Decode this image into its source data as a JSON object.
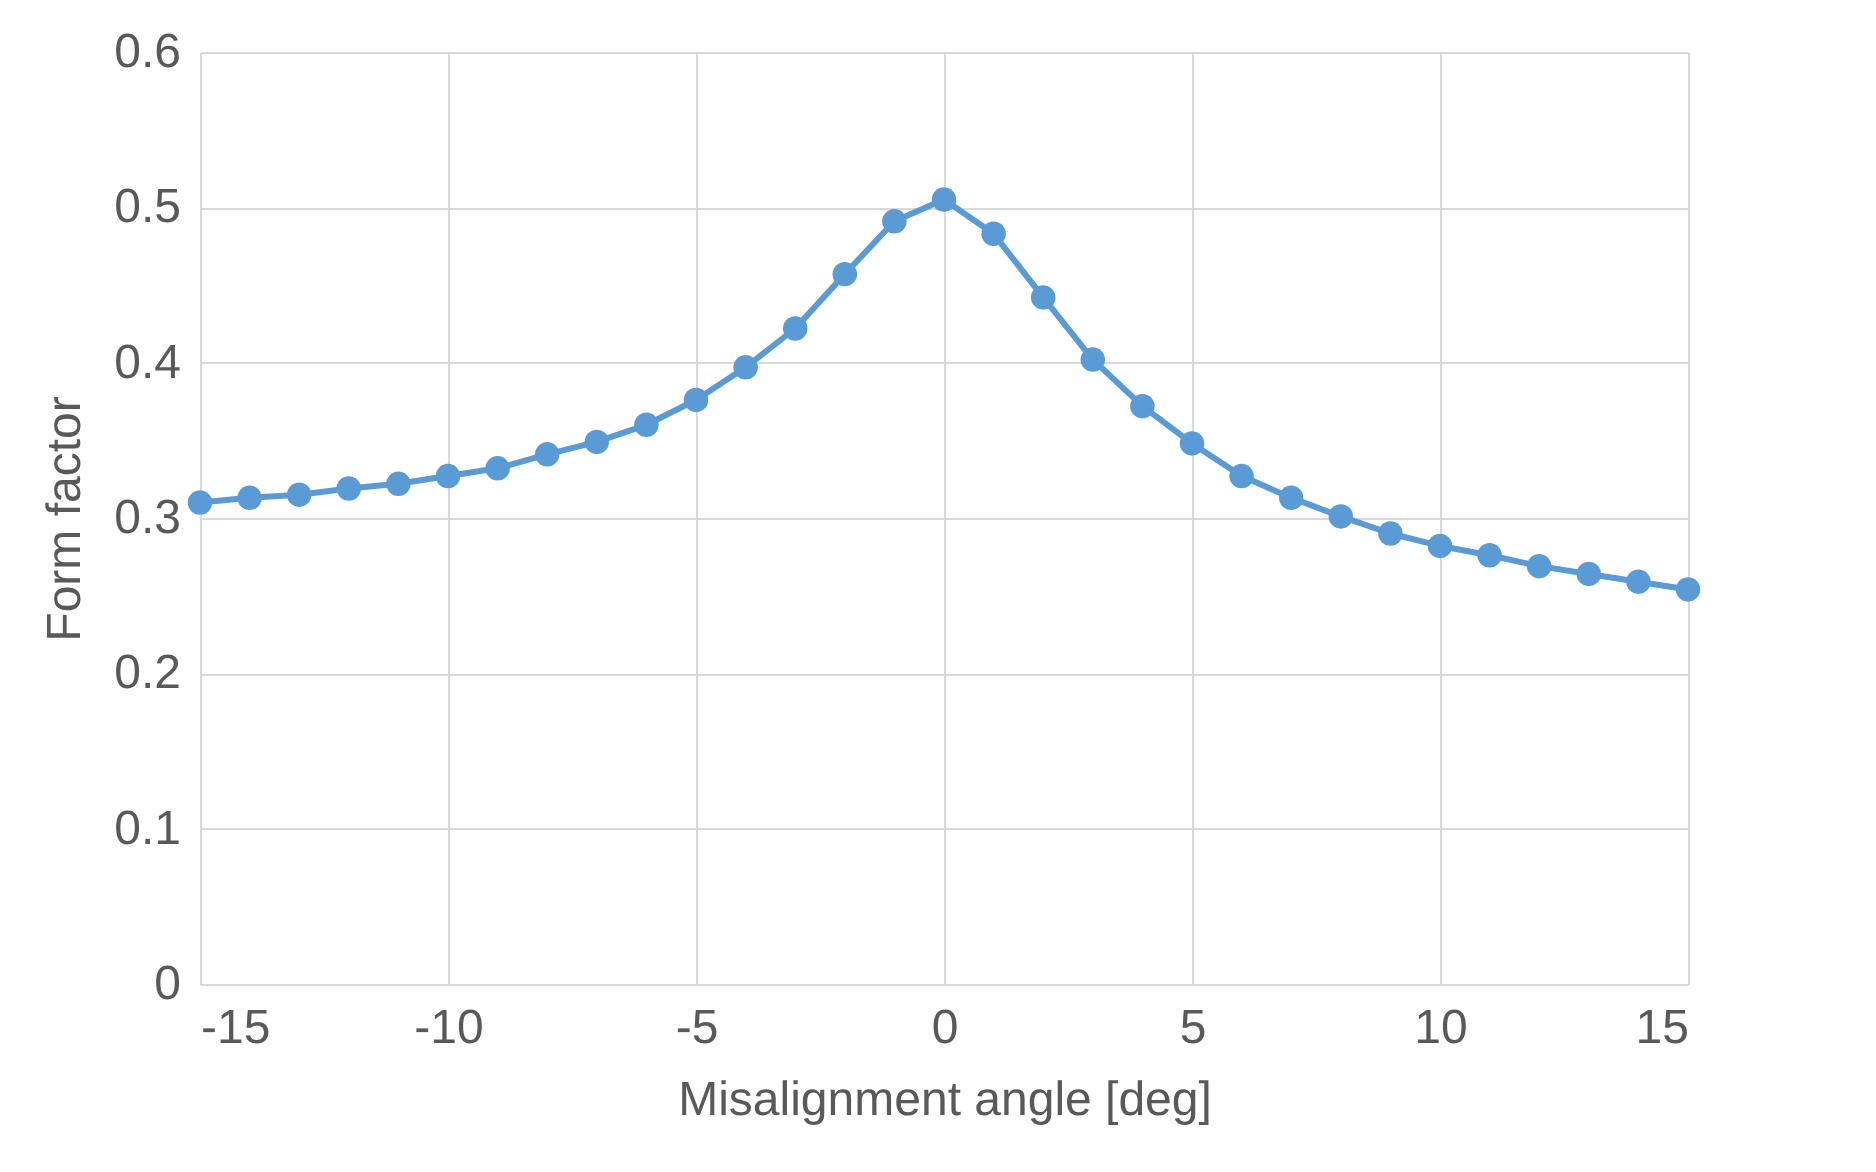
{
  "chart_data": {
    "type": "line",
    "xlabel": "Misalignment angle [deg]",
    "ylabel": "Form factor",
    "x": [
      -15,
      -14,
      -13,
      -12,
      -11,
      -10,
      -9,
      -8,
      -7,
      -6,
      -5,
      -4,
      -3,
      -2,
      -1,
      0,
      1,
      2,
      3,
      4,
      5,
      6,
      7,
      8,
      9,
      10,
      11,
      12,
      13,
      14,
      15
    ],
    "series": [
      {
        "color": "#5b9bd5",
        "values": [
          0.31,
          0.313,
          0.315,
          0.319,
          0.322,
          0.327,
          0.332,
          0.341,
          0.349,
          0.36,
          0.376,
          0.397,
          0.422,
          0.457,
          0.491,
          0.505,
          0.483,
          0.442,
          0.402,
          0.372,
          0.348,
          0.327,
          0.313,
          0.301,
          0.29,
          0.282,
          0.276,
          0.269,
          0.264,
          0.259,
          0.254
        ]
      }
    ],
    "xlim": [
      -15,
      15
    ],
    "xticks": [
      -15,
      -10,
      -5,
      0,
      5,
      10,
      15
    ],
    "ylim": [
      0,
      0.6
    ],
    "yticks": [
      0,
      0.1,
      0.2,
      0.3,
      0.4,
      0.5,
      0.6
    ],
    "grid": true,
    "marker": "circle",
    "line_style": "solid"
  }
}
